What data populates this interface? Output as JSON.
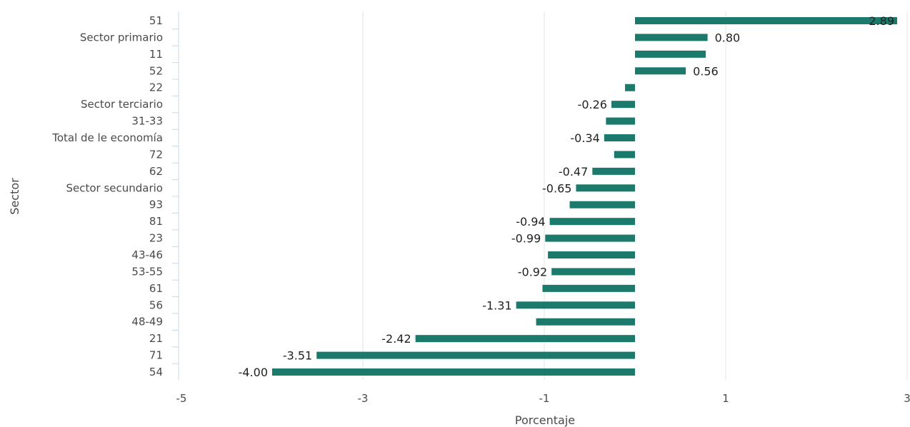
{
  "chart_data": {
    "type": "bar",
    "orientation": "horizontal",
    "title": "",
    "xlabel": "Porcentaje",
    "ylabel": "Sector",
    "xlim": [
      -5,
      3
    ],
    "xticks": [
      "-5",
      "-3",
      "-1",
      "1",
      "3"
    ],
    "grid": "vertical",
    "bar_color": "#1b7a6b",
    "categories": [
      "51",
      "Sector primario",
      "11",
      "52",
      "22",
      "Sector terciario",
      "31-33",
      "Total de le economía",
      "72",
      "62",
      "Sector secundario",
      "93",
      "81",
      "23",
      "43-46",
      "53-55",
      "61",
      "56",
      "48-49",
      "21",
      "71",
      "54"
    ],
    "values": [
      2.89,
      0.8,
      0.78,
      0.56,
      -0.11,
      -0.26,
      -0.32,
      -0.34,
      -0.23,
      -0.47,
      -0.65,
      -0.72,
      -0.94,
      -0.99,
      -0.96,
      -0.92,
      -1.02,
      -1.31,
      -1.09,
      -2.42,
      -3.51,
      -4.0
    ],
    "data_labels": [
      "2.89",
      "0.80",
      "",
      "0.56",
      "",
      "-0.26",
      "",
      "-0.34",
      "",
      "-0.47",
      "-0.65",
      "",
      "-0.94",
      "-0.99",
      "",
      "-0.92",
      "",
      "-1.31",
      "",
      "-2.42",
      "-3.51",
      "-4.00"
    ]
  }
}
